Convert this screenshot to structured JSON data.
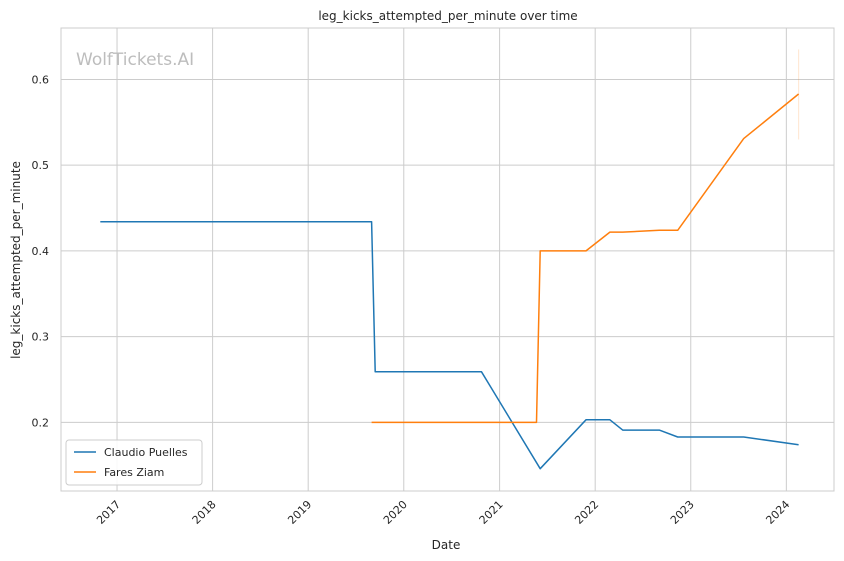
{
  "chart_data": {
    "type": "line",
    "title": "leg_kicks_attempted_per_minute over time",
    "xlabel": "Date",
    "ylabel": "leg_kicks_attempted_per_minute",
    "watermark": "WolfTickets.AI",
    "x_tick_labels": [
      "2017",
      "2018",
      "2019",
      "2020",
      "2021",
      "2022",
      "2023",
      "2024"
    ],
    "y_tick_labels": [
      "0.2",
      "0.3",
      "0.4",
      "0.5",
      "0.6"
    ],
    "y_ticks": [
      0.2,
      0.3,
      0.4,
      0.5,
      0.6
    ],
    "xlim": [
      "2016-06-01",
      "2024-07-01"
    ],
    "ylim": [
      0.12,
      0.66
    ],
    "grid": true,
    "legend_position": "lower-left",
    "colors": {
      "Claudio Puelles": "#1f77b4",
      "Fares Ziam": "#ff7f0e"
    },
    "series": [
      {
        "name": "Claudio Puelles",
        "x": [
          "2016-10-29",
          "2019-08-31",
          "2019-09-14",
          "2020-10-24",
          "2021-06-05",
          "2021-11-27",
          "2022-02-26",
          "2022-04-16",
          "2022-09-03",
          "2022-11-12",
          "2023-07-22",
          "2024-02-17"
        ],
        "y": [
          0.434,
          0.434,
          0.259,
          0.259,
          0.146,
          0.203,
          0.203,
          0.191,
          0.191,
          0.183,
          0.183,
          0.174
        ]
      },
      {
        "name": "Fares Ziam",
        "x": [
          "2019-08-31",
          "2021-05-22",
          "2021-06-05",
          "2021-11-27",
          "2022-02-26",
          "2022-04-16",
          "2022-09-03",
          "2022-11-12",
          "2023-07-22",
          "2024-02-17"
        ],
        "y": [
          0.2,
          0.2,
          0.4,
          0.4,
          0.422,
          0.422,
          0.424,
          0.424,
          0.531,
          0.583
        ]
      }
    ]
  }
}
